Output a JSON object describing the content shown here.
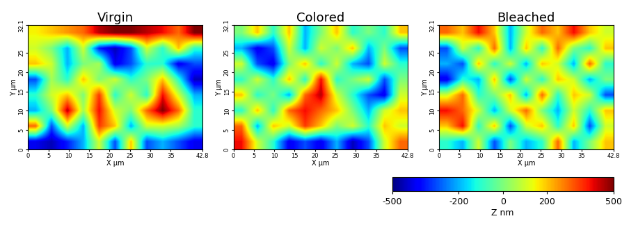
{
  "chart_data": [
    {
      "type": "heatmap",
      "title": "Virgin",
      "x_label": "X µm",
      "y_label": "Y µm",
      "xlim": [
        0,
        42.8
      ],
      "ylim": [
        0,
        32.1
      ],
      "xticks": [
        0,
        5,
        10,
        15,
        20,
        25,
        30,
        35,
        42.8
      ],
      "yticks": [
        0,
        5,
        10,
        15,
        20,
        25,
        32.1
      ],
      "cells": [
        [
          150,
          200,
          250,
          300,
          450,
          500,
          500,
          450,
          400,
          300,
          500
        ],
        [
          100,
          0,
          -200,
          100,
          -350,
          -450,
          -300,
          100,
          -100,
          200,
          -100
        ],
        [
          200,
          100,
          -200,
          0,
          50,
          -400,
          -300,
          -100,
          -100,
          -400,
          -300
        ],
        [
          -300,
          50,
          -100,
          200,
          0,
          100,
          -100,
          0,
          200,
          -100,
          -450
        ],
        [
          -100,
          100,
          200,
          0,
          350,
          -100,
          100,
          -100,
          400,
          100,
          -200
        ],
        [
          -200,
          0,
          450,
          50,
          400,
          100,
          0,
          300,
          500,
          300,
          -100
        ],
        [
          300,
          -300,
          100,
          -200,
          350,
          200,
          -200,
          100,
          100,
          50,
          -100
        ],
        [
          -400,
          -450,
          -350,
          -200,
          100,
          -300,
          200,
          -300,
          -200,
          -300,
          -400
        ]
      ]
    },
    {
      "type": "heatmap",
      "title": "Colored",
      "x_label": "X µm",
      "y_label": "Y µm",
      "xlim": [
        0,
        42.8
      ],
      "ylim": [
        0,
        32.1
      ],
      "xticks": [
        0,
        5,
        10,
        15,
        20,
        25,
        30,
        35,
        42.8
      ],
      "yticks": [
        0,
        5,
        10,
        15,
        20,
        25,
        32.1
      ],
      "cells": [
        [
          0,
          200,
          -100,
          200,
          -200,
          0,
          200,
          -100,
          0,
          -100,
          200
        ],
        [
          -200,
          -400,
          -300,
          100,
          -200,
          100,
          0,
          200,
          -200,
          0,
          -300
        ],
        [
          100,
          -300,
          -400,
          0,
          200,
          -100,
          100,
          -200,
          -300,
          100,
          -100
        ],
        [
          -100,
          100,
          -100,
          200,
          -100,
          400,
          -100,
          0,
          100,
          -300,
          0
        ],
        [
          200,
          -100,
          0,
          -200,
          300,
          450,
          100,
          -100,
          -300,
          -400,
          100
        ],
        [
          -100,
          200,
          -100,
          300,
          400,
          300,
          200,
          0,
          -200,
          100,
          200
        ],
        [
          300,
          -200,
          200,
          100,
          350,
          200,
          0,
          100,
          -100,
          200,
          100
        ],
        [
          400,
          100,
          -100,
          -400,
          -300,
          -400,
          -200,
          -450,
          -300,
          100,
          300
        ]
      ]
    },
    {
      "type": "heatmap",
      "title": "Bleached",
      "x_label": "X µm",
      "y_label": "Y µm",
      "xlim": [
        0,
        42.8
      ],
      "ylim": [
        0,
        32.1
      ],
      "xticks": [
        0,
        5,
        10,
        15,
        20,
        25,
        30,
        35,
        42.8
      ],
      "yticks": [
        0,
        5,
        10,
        15,
        20,
        25,
        32.1
      ],
      "cells": [
        [
          300,
          200,
          400,
          200,
          -200,
          100,
          300,
          200,
          400,
          200,
          100
        ],
        [
          -300,
          100,
          -100,
          300,
          -200,
          200,
          -100,
          300,
          0,
          -100,
          200
        ],
        [
          -200,
          -300,
          200,
          -100,
          100,
          -200,
          200,
          100,
          -200,
          300,
          -100
        ],
        [
          -400,
          -100,
          -200,
          200,
          -300,
          100,
          -100,
          200,
          100,
          -200,
          0
        ],
        [
          100,
          300,
          -100,
          0,
          200,
          -200,
          300,
          -100,
          200,
          100,
          -300
        ],
        [
          400,
          300,
          100,
          -200,
          100,
          300,
          0,
          -200,
          100,
          -100,
          200
        ],
        [
          200,
          400,
          -100,
          200,
          -300,
          100,
          200,
          -100,
          200,
          -300,
          100
        ],
        [
          -100,
          -200,
          100,
          -300,
          0,
          -200,
          -100,
          300,
          -200,
          0,
          200
        ]
      ]
    }
  ],
  "colorbar": {
    "label": "Z nm",
    "range": [
      -500,
      500
    ],
    "ticks": [
      -500,
      -200,
      0,
      200,
      500
    ]
  }
}
